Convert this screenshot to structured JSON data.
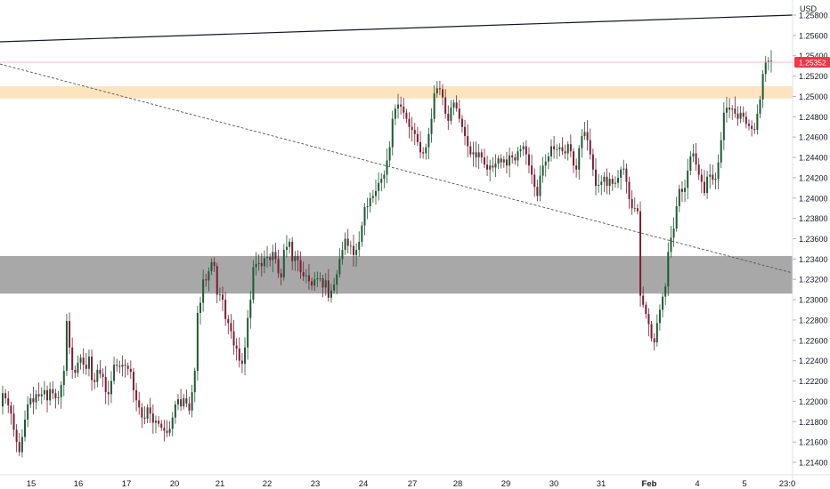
{
  "chart_data": {
    "type": "candlestick",
    "currency_label": "USD",
    "y_ticks": [
      "1.25800",
      "1.25600",
      "1.25400",
      "1.25200",
      "1.25000",
      "1.24800",
      "1.24600",
      "1.24400",
      "1.24200",
      "1.24000",
      "1.23800",
      "1.23600",
      "1.23400",
      "1.23200",
      "1.23000",
      "1.22800",
      "1.22600",
      "1.22400",
      "1.22200",
      "1.22000",
      "1.21800",
      "1.21600",
      "1.21400"
    ],
    "y_range": [
      1.2132,
      1.2596
    ],
    "x_ticks": [
      {
        "label": "15"
      },
      {
        "label": "16"
      },
      {
        "label": "17"
      },
      {
        "label": "20"
      },
      {
        "label": "21"
      },
      {
        "label": "22"
      },
      {
        "label": "23"
      },
      {
        "label": "24"
      },
      {
        "label": "27"
      },
      {
        "label": "28"
      },
      {
        "label": "29"
      },
      {
        "label": "30"
      },
      {
        "label": "31"
      },
      {
        "label": "Feb",
        "bold": true
      },
      {
        "label": "4"
      },
      {
        "label": "5"
      },
      {
        "label": "23:0"
      }
    ],
    "current_price": {
      "label": "1.25352",
      "value": 1.25352,
      "color": "#f23645"
    },
    "colors": {
      "up": "#089981",
      "down": "#f23645",
      "up_display": "#1e5a35",
      "down_display": "#7a1f35",
      "trendline": "#131722"
    },
    "zones": [
      {
        "name": "resistance-zone",
        "from": 1.2498,
        "to": 1.251,
        "color": "#fde4bf"
      },
      {
        "name": "support-zone",
        "from": 1.2306,
        "to": 1.2343,
        "color": "#a8a8a8"
      }
    ],
    "candles_close": [
      1.2208,
      1.2203,
      1.2196,
      1.2188,
      1.2172,
      1.216,
      1.215,
      1.2165,
      1.2182,
      1.2197,
      1.2203,
      1.2199,
      1.2207,
      1.2205,
      1.2207,
      1.2211,
      1.2201,
      1.2212,
      1.2208,
      1.2203,
      1.2204,
      1.2216,
      1.223,
      1.2279,
      1.2253,
      1.2231,
      1.2228,
      1.2238,
      1.2243,
      1.2236,
      1.2232,
      1.2244,
      1.2221,
      1.2219,
      1.2231,
      1.2227,
      1.2224,
      1.2209,
      1.2207,
      1.222,
      1.2236,
      1.2235,
      1.2234,
      1.2236,
      1.2235,
      1.2232,
      1.2229,
      1.2211,
      1.2201,
      1.2194,
      1.2184,
      1.2183,
      1.2194,
      1.2188,
      1.2179,
      1.2181,
      1.2178,
      1.2174,
      1.2171,
      1.2169,
      1.2173,
      1.2184,
      1.2197,
      1.2202,
      1.2195,
      1.2203,
      1.2198,
      1.2191,
      1.2209,
      1.223,
      1.2287,
      1.2297,
      1.232,
      1.2319,
      1.2328,
      1.2337,
      1.2333,
      1.2305,
      1.2305,
      1.23,
      1.2281,
      1.2277,
      1.2269,
      1.2255,
      1.2252,
      1.224,
      1.2237,
      1.2253,
      1.2282,
      1.23,
      1.2332,
      1.2335,
      1.2336,
      1.2333,
      1.2341,
      1.2342,
      1.2339,
      1.2347,
      1.234,
      1.2326,
      1.2322,
      1.2349,
      1.2352,
      1.2357,
      1.2338,
      1.2343,
      1.2339,
      1.2327,
      1.2323,
      1.2324,
      1.2318,
      1.2314,
      1.232,
      1.2321,
      1.2321,
      1.2312,
      1.2319,
      1.2302,
      1.2309,
      1.2315,
      1.2325,
      1.234,
      1.2349,
      1.236,
      1.2353,
      1.2353,
      1.2344,
      1.2349,
      1.2357,
      1.2373,
      1.2391,
      1.2392,
      1.24,
      1.2402,
      1.2407,
      1.2415,
      1.2419,
      1.2423,
      1.2437,
      1.245,
      1.2478,
      1.2488,
      1.2492,
      1.249,
      1.2484,
      1.2478,
      1.247,
      1.2467,
      1.2463,
      1.2455,
      1.2445,
      1.2444,
      1.245,
      1.2463,
      1.2478,
      1.2503,
      1.2508,
      1.2507,
      1.2499,
      1.2483,
      1.2476,
      1.2489,
      1.2494,
      1.2488,
      1.2478,
      1.247,
      1.2461,
      1.2451,
      1.2443,
      1.2445,
      1.244,
      1.2445,
      1.244,
      1.2433,
      1.2428,
      1.2432,
      1.243,
      1.2434,
      1.2439,
      1.2435,
      1.2438,
      1.2432,
      1.2442,
      1.244,
      1.2437,
      1.2446,
      1.2448,
      1.2451,
      1.2443,
      1.2432,
      1.2423,
      1.2411,
      1.2402,
      1.2422,
      1.2432,
      1.2436,
      1.2441,
      1.2451,
      1.2448,
      1.2448,
      1.245,
      1.2446,
      1.2444,
      1.2453,
      1.2446,
      1.2432,
      1.2428,
      1.2449,
      1.2461,
      1.2465,
      1.2457,
      1.2443,
      1.2428,
      1.2412,
      1.2413,
      1.2416,
      1.2421,
      1.2412,
      1.2419,
      1.2414,
      1.2415,
      1.242,
      1.2428,
      1.2429,
      1.2416,
      1.2399,
      1.239,
      1.239,
      1.2387,
      1.2304,
      1.2295,
      1.2286,
      1.2276,
      1.2262,
      1.2258,
      1.2277,
      1.229,
      1.2303,
      1.2313,
      1.2347,
      1.2361,
      1.237,
      1.2392,
      1.2409,
      1.2406,
      1.241,
      1.2427,
      1.2441,
      1.2444,
      1.2433,
      1.2423,
      1.2416,
      1.2405,
      1.2421,
      1.2423,
      1.2418,
      1.2419,
      1.2435,
      1.2457,
      1.2484,
      1.2489,
      1.2487,
      1.2488,
      1.2483,
      1.2478,
      1.2484,
      1.248,
      1.2473,
      1.2471,
      1.2468,
      1.2467,
      1.2483,
      1.2497,
      1.2522,
      1.2534,
      1.2535,
      1.2535
    ]
  }
}
